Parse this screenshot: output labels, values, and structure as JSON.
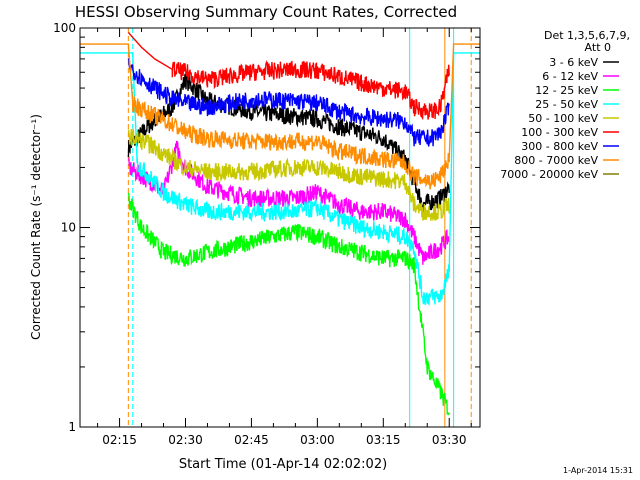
{
  "chart_data": {
    "type": "line",
    "title": "HESSI Observing Summary Count Rates, Corrected",
    "xlabel": "Start Time (01-Apr-14 02:02:02)",
    "ylabel": "Corrected Count Rate (s⁻¹ detector⁻¹)",
    "y_scale": "log",
    "ylim": [
      1,
      100
    ],
    "xlim": [
      "02:06",
      "03:37"
    ],
    "grid": false,
    "legend_placement": "right",
    "y_ticks": [
      {
        "value": 1,
        "label": "1"
      },
      {
        "value": 10,
        "label": "10"
      },
      {
        "value": 100,
        "label": "100"
      }
    ],
    "x_ticks": [
      {
        "value": "02:15",
        "label": "02:15"
      },
      {
        "value": "02:30",
        "label": "02:30"
      },
      {
        "value": "02:45",
        "label": "02:45"
      },
      {
        "value": "03:00",
        "label": "03:00"
      },
      {
        "value": "03:15",
        "label": "03:15"
      },
      {
        "value": "03:30",
        "label": "03:30"
      }
    ],
    "legend_header": [
      "Det 1,3,5,6,7,9,",
      "Att 0"
    ],
    "series": [
      {
        "name": "3 - 6 keV",
        "color": "#000000",
        "points": [
          [
            "02:17",
            25
          ],
          [
            "02:22",
            33
          ],
          [
            "02:27",
            40
          ],
          [
            "02:30",
            55
          ],
          [
            "02:35",
            43
          ],
          [
            "02:45",
            38
          ],
          [
            "02:55",
            36
          ],
          [
            "03:00",
            35
          ],
          [
            "03:05",
            32
          ],
          [
            "03:10",
            30
          ],
          [
            "03:15",
            28
          ],
          [
            "03:20",
            22
          ],
          [
            "03:22",
            17
          ],
          [
            "03:24",
            13
          ],
          [
            "03:28",
            14
          ],
          [
            "03:30",
            16
          ]
        ]
      },
      {
        "name": "6 - 12 keV",
        "color": "#ff00ff",
        "points": [
          [
            "02:17",
            20
          ],
          [
            "02:22",
            17
          ],
          [
            "02:25",
            15
          ],
          [
            "02:28",
            25
          ],
          [
            "02:30",
            20
          ],
          [
            "02:35",
            16
          ],
          [
            "02:45",
            14
          ],
          [
            "02:55",
            14
          ],
          [
            "03:00",
            15
          ],
          [
            "03:05",
            13
          ],
          [
            "03:10",
            12
          ],
          [
            "03:15",
            12
          ],
          [
            "03:20",
            11
          ],
          [
            "03:22",
            9
          ],
          [
            "03:24",
            7
          ],
          [
            "03:28",
            8
          ],
          [
            "03:30",
            9
          ]
        ]
      },
      {
        "name": "12 - 25 keV",
        "color": "#00ff00",
        "points": [
          [
            "02:17",
            14
          ],
          [
            "02:20",
            10
          ],
          [
            "02:25",
            7.5
          ],
          [
            "02:30",
            7
          ],
          [
            "02:35",
            7.5
          ],
          [
            "02:45",
            8.5
          ],
          [
            "02:55",
            9.5
          ],
          [
            "03:00",
            9
          ],
          [
            "03:05",
            8
          ],
          [
            "03:10",
            7.5
          ],
          [
            "03:15",
            7
          ],
          [
            "03:20",
            7
          ],
          [
            "03:22",
            6.5
          ],
          [
            "03:25",
            2
          ],
          [
            "03:28",
            1.5
          ],
          [
            "03:30",
            1.2
          ]
        ]
      },
      {
        "name": "25 - 50 keV",
        "color": "#00ffff",
        "points": [
          [
            "02:06",
            75
          ],
          [
            "02:18",
            75
          ],
          [
            "02:19",
            21
          ],
          [
            "02:25",
            15
          ],
          [
            "02:30",
            13
          ],
          [
            "02:35",
            12
          ],
          [
            "02:45",
            12
          ],
          [
            "02:55",
            12
          ],
          [
            "03:00",
            12.5
          ],
          [
            "03:05",
            11
          ],
          [
            "03:10",
            10
          ],
          [
            "03:15",
            9.5
          ],
          [
            "03:20",
            9
          ],
          [
            "03:22",
            8
          ],
          [
            "03:24",
            4.5
          ],
          [
            "03:28",
            4.5
          ],
          [
            "03:30",
            6
          ],
          [
            "03:31",
            75
          ],
          [
            "03:37",
            75
          ]
        ]
      },
      {
        "name": "50 - 100 keV",
        "color": "#c8c800",
        "points": [
          [
            "02:17",
            29
          ],
          [
            "02:22",
            26
          ],
          [
            "02:27",
            22
          ],
          [
            "02:30",
            20
          ],
          [
            "02:35",
            19
          ],
          [
            "02:45",
            19
          ],
          [
            "02:55",
            20
          ],
          [
            "03:00",
            20
          ],
          [
            "03:05",
            19
          ],
          [
            "03:10",
            18
          ],
          [
            "03:15",
            17.5
          ],
          [
            "03:20",
            17
          ],
          [
            "03:22",
            13
          ],
          [
            "03:24",
            12
          ],
          [
            "03:28",
            12
          ],
          [
            "03:30",
            13
          ]
        ]
      },
      {
        "name": "100 - 300 keV",
        "color": "#ff0000",
        "points": [
          [
            "02:17",
            95
          ],
          [
            "02:20",
            80
          ],
          [
            "02:23",
            70
          ],
          [
            "02:27",
            62
          ],
          [
            "02:30",
            60
          ],
          [
            "02:35",
            55
          ],
          [
            "02:45",
            60
          ],
          [
            "02:55",
            62
          ],
          [
            "03:00",
            61
          ],
          [
            "03:05",
            57
          ],
          [
            "03:10",
            53
          ],
          [
            "03:15",
            50
          ],
          [
            "03:20",
            48
          ],
          [
            "03:22",
            40
          ],
          [
            "03:26",
            38
          ],
          [
            "03:28",
            40
          ],
          [
            "03:30",
            62
          ]
        ]
      },
      {
        "name": "300 - 800 keV",
        "color": "#0000ff",
        "points": [
          [
            "02:17",
            65
          ],
          [
            "02:20",
            56
          ],
          [
            "02:23",
            50
          ],
          [
            "02:27",
            44
          ],
          [
            "02:30",
            42
          ],
          [
            "02:35",
            40
          ],
          [
            "02:45",
            44
          ],
          [
            "02:55",
            43
          ],
          [
            "03:00",
            42
          ],
          [
            "03:05",
            38
          ],
          [
            "03:10",
            36
          ],
          [
            "03:15",
            35
          ],
          [
            "03:20",
            34
          ],
          [
            "03:22",
            28
          ],
          [
            "03:26",
            28
          ],
          [
            "03:28",
            30
          ],
          [
            "03:30",
            40
          ]
        ]
      },
      {
        "name": "800 - 7000 keV",
        "color": "#ff8c00",
        "points": [
          [
            "02:06",
            83
          ],
          [
            "02:17",
            83
          ],
          [
            "02:18",
            42
          ],
          [
            "02:22",
            37
          ],
          [
            "02:27",
            33
          ],
          [
            "02:30",
            30
          ],
          [
            "02:35",
            28
          ],
          [
            "02:45",
            27
          ],
          [
            "02:55",
            27
          ],
          [
            "03:00",
            27
          ],
          [
            "03:05",
            24
          ],
          [
            "03:10",
            23
          ],
          [
            "03:15",
            22
          ],
          [
            "03:20",
            21
          ],
          [
            "03:22",
            18
          ],
          [
            "03:26",
            17
          ],
          [
            "03:28",
            18
          ],
          [
            "03:30",
            22
          ],
          [
            "03:31",
            83
          ],
          [
            "03:37",
            83
          ]
        ]
      },
      {
        "name": "7000 - 20000 keV",
        "color": "#808000",
        "points": []
      }
    ],
    "annotations": [
      {
        "type": "vline",
        "x": "02:17",
        "color": "#ff8c00",
        "dashed": true
      },
      {
        "type": "vline",
        "x": "02:18",
        "color": "#00ffff",
        "dashed": true
      },
      {
        "type": "vline",
        "x": "03:21",
        "color": "#00ffff",
        "dashed": false
      },
      {
        "type": "vline",
        "x": "03:29",
        "color": "#ff8c00",
        "dashed": false
      },
      {
        "type": "vline",
        "x": "03:31",
        "color": "#00ffff",
        "dashed": false
      },
      {
        "type": "vline",
        "x": "03:35",
        "color": "#ff8c00",
        "dashed": true
      }
    ],
    "footer_date": "1-Apr-2014 15:31"
  }
}
